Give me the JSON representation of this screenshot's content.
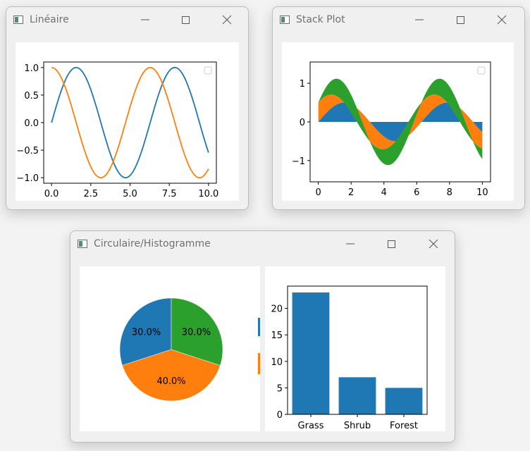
{
  "windows": {
    "lineaire": {
      "title": "Linéaire"
    },
    "stack": {
      "title": "Stack Plot"
    },
    "circ": {
      "title": "Circulaire/Histogramme"
    }
  },
  "colors": {
    "blue": "#1f77b4",
    "orange": "#ff7f0e",
    "green": "#2ca02c"
  },
  "chart_data": [
    {
      "type": "line",
      "window": "Linéaire",
      "x_range": [
        0,
        10
      ],
      "series": [
        {
          "function": "sin(x)",
          "color": "#1f77b4"
        },
        {
          "function": "cos(x)",
          "color": "#ff7f0e"
        }
      ],
      "ylim": [
        -1.1,
        1.1
      ],
      "xticks": [
        "0.0",
        "2.5",
        "5.0",
        "7.5",
        "10.0"
      ],
      "yticks": [
        "1.0",
        "0.5",
        "0.0",
        "−0.5",
        "−1.0"
      ],
      "legend": "top-right (empty)"
    },
    {
      "type": "area",
      "window": "Stack Plot",
      "stacked": true,
      "x_range": [
        0,
        10
      ],
      "series": [
        {
          "function": "0.5*sin(x)",
          "color": "#1f77b4"
        },
        {
          "function": "0.5*cos(x)",
          "color": "#ff7f0e"
        },
        {
          "function": "0.5*sin(x)",
          "color": "#2ca02c"
        }
      ],
      "xlim": [
        -0.5,
        10.5
      ],
      "ylim": [
        -1.55,
        1.55
      ],
      "xticks": [
        "0",
        "2",
        "4",
        "6",
        "8",
        "10"
      ],
      "yticks": [
        "1",
        "0",
        "−1"
      ],
      "legend": "top-right (empty)"
    },
    {
      "type": "pie",
      "window": "Circulaire/Histogramme",
      "slices": [
        {
          "label": "30.0%",
          "value": 30,
          "color": "#1f77b4"
        },
        {
          "label": "40.0%",
          "value": 40,
          "color": "#ff7f0e"
        },
        {
          "label": "30.0%",
          "value": 30,
          "color": "#2ca02c"
        }
      ]
    },
    {
      "type": "bar",
      "window": "Circulaire/Histogramme",
      "categories": [
        "Grass",
        "Shrub",
        "Forest"
      ],
      "values": [
        23,
        7,
        5
      ],
      "color": "#1f77b4",
      "ylim": [
        0,
        24.2
      ],
      "yticks": [
        "0",
        "5",
        "10",
        "15",
        "20"
      ]
    }
  ]
}
